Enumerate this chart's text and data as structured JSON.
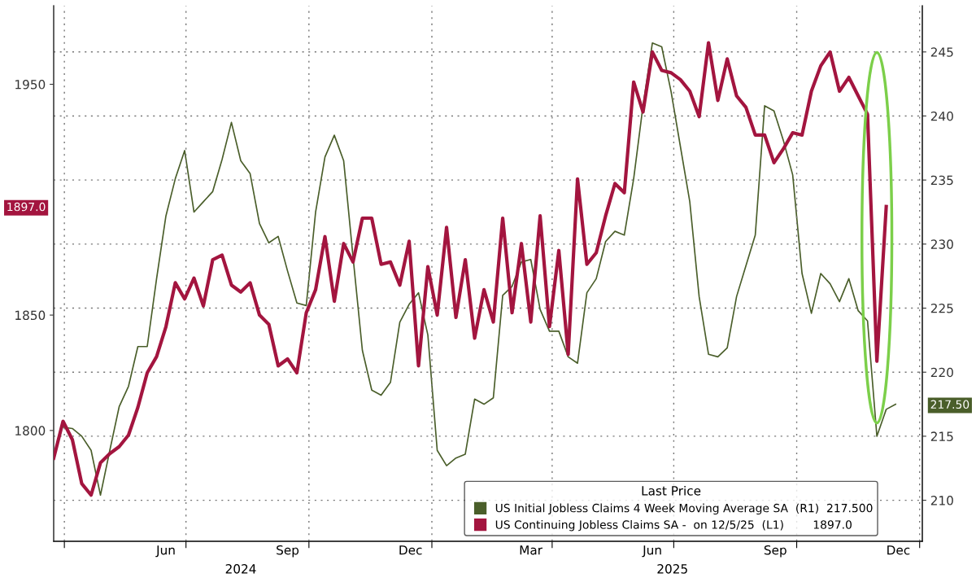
{
  "chart_data": {
    "type": "line",
    "x": [
      "2024-03-24",
      "2024-03-31",
      "2024-04-07",
      "2024-04-14",
      "2024-04-21",
      "2024-04-28",
      "2024-05-05",
      "2024-05-12",
      "2024-05-19",
      "2024-05-26",
      "2024-06-02",
      "2024-06-09",
      "2024-06-16",
      "2024-06-23",
      "2024-06-30",
      "2024-07-07",
      "2024-07-14",
      "2024-07-21",
      "2024-07-28",
      "2024-08-04",
      "2024-08-11",
      "2024-08-18",
      "2024-08-25",
      "2024-09-01",
      "2024-09-08",
      "2024-09-15",
      "2024-09-22",
      "2024-09-29",
      "2024-10-06",
      "2024-10-13",
      "2024-10-20",
      "2024-10-27",
      "2024-11-03",
      "2024-11-10",
      "2024-11-17",
      "2024-11-24",
      "2024-12-01",
      "2024-12-08",
      "2024-12-15",
      "2024-12-22",
      "2024-12-29",
      "2025-01-05",
      "2025-01-12",
      "2025-01-19",
      "2025-01-26",
      "2025-02-02",
      "2025-02-09",
      "2025-02-16",
      "2025-02-23",
      "2025-03-02",
      "2025-03-09",
      "2025-03-16",
      "2025-03-23",
      "2025-03-30",
      "2025-04-06",
      "2025-04-13",
      "2025-04-20",
      "2025-04-27",
      "2025-05-04",
      "2025-05-11",
      "2025-05-18",
      "2025-05-25",
      "2025-06-01",
      "2025-06-08",
      "2025-06-15",
      "2025-06-22",
      "2025-06-29",
      "2025-07-06",
      "2025-07-13",
      "2025-07-20",
      "2025-07-27",
      "2025-08-03",
      "2025-08-10",
      "2025-08-17",
      "2025-08-24",
      "2025-08-31",
      "2025-09-07",
      "2025-09-14",
      "2025-09-21",
      "2025-09-28",
      "2025-10-05",
      "2025-10-12",
      "2025-10-19",
      "2025-10-26",
      "2025-11-02",
      "2025-11-09",
      "2025-11-16",
      "2025-11-23",
      "2025-11-30",
      "2025-12-07"
    ],
    "series": [
      {
        "name": "US Initial Jobless Claims 4 Week Moving Average SA  (R1)  217.500",
        "color": "#4a5e2a",
        "axis": "y2",
        "x": [
          "2024-03-31",
          "2024-04-07",
          "2024-04-14",
          "2024-04-21",
          "2024-04-28",
          "2024-05-05",
          "2024-05-12",
          "2024-05-19",
          "2024-05-26",
          "2024-06-02",
          "2024-06-09",
          "2024-06-16",
          "2024-06-23",
          "2024-06-30",
          "2024-07-07",
          "2024-07-14",
          "2024-07-21",
          "2024-07-28",
          "2024-08-04",
          "2024-08-11",
          "2024-08-18",
          "2024-08-25",
          "2024-09-01",
          "2024-09-08",
          "2024-09-15",
          "2024-09-22",
          "2024-09-29",
          "2024-10-06",
          "2024-10-13",
          "2024-10-20",
          "2024-10-27",
          "2024-11-03",
          "2024-11-10",
          "2024-11-17",
          "2024-11-24",
          "2024-12-01",
          "2024-12-08",
          "2024-12-15",
          "2024-12-22",
          "2024-12-29",
          "2025-01-05",
          "2025-01-12",
          "2025-01-19",
          "2025-01-26",
          "2025-02-02",
          "2025-02-09",
          "2025-02-16",
          "2025-02-23",
          "2025-03-02",
          "2025-03-09",
          "2025-03-16",
          "2025-03-23",
          "2025-03-30",
          "2025-04-06",
          "2025-04-13",
          "2025-04-20",
          "2025-04-27",
          "2025-05-04",
          "2025-05-11",
          "2025-05-18",
          "2025-05-25",
          "2025-06-01",
          "2025-06-08",
          "2025-06-15",
          "2025-06-22",
          "2025-06-29",
          "2025-07-06",
          "2025-07-13",
          "2025-07-20",
          "2025-07-27",
          "2025-08-03",
          "2025-08-10",
          "2025-08-17",
          "2025-08-24",
          "2025-08-31",
          "2025-09-07",
          "2025-09-14",
          "2025-09-21",
          "2025-09-28",
          "2025-10-05",
          "2025-10-12",
          "2025-10-19",
          "2025-10-26",
          "2025-11-02",
          "2025-11-09",
          "2025-11-16",
          "2025-11-23",
          "2025-11-30",
          "2025-12-07",
          "2025-12-14"
        ],
        "values": [
          215.7,
          215.6,
          215.0,
          213.9,
          210.4,
          213.9,
          217.3,
          218.9,
          222.0,
          222.0,
          227.3,
          232.2,
          235.1,
          237.3,
          232.5,
          233.3,
          234.1,
          236.6,
          239.5,
          236.5,
          235.5,
          231.6,
          230.1,
          230.6,
          227.9,
          225.4,
          225.2,
          232.5,
          236.8,
          238.5,
          236.5,
          229.0,
          221.7,
          218.6,
          218.2,
          219.2,
          223.9,
          225.3,
          226.2,
          222.9,
          213.9,
          212.7,
          213.3,
          213.6,
          217.9,
          217.5,
          218.0,
          226.0,
          226.7,
          228.6,
          228.8,
          224.9,
          223.2,
          223.2,
          221.2,
          220.7,
          226.2,
          227.3,
          230.2,
          231.0,
          230.7,
          235.1,
          240.8,
          245.7,
          245.4,
          241.9,
          237.6,
          233.3,
          225.9,
          221.4,
          221.2,
          221.9,
          225.9,
          228.3,
          230.7,
          240.8,
          240.4,
          238.1,
          235.4,
          227.7,
          224.6,
          227.7,
          226.9,
          225.5,
          227.3,
          224.8,
          224.0,
          215.0,
          217.1,
          217.5
        ]
      },
      {
        "name": "US Continuing Jobless Claims SA -  on 12/5/25  (L1)        1897.0",
        "color": "#a3153f",
        "values": [
          1788,
          1804,
          1796,
          1777,
          1772,
          1786,
          1790,
          1793,
          1798,
          1810,
          1825,
          1832,
          1845,
          1864,
          1857,
          1866,
          1854,
          1874,
          1876,
          1863,
          1860,
          1864,
          1850,
          1846,
          1828,
          1831,
          1825,
          1851,
          1861,
          1884,
          1856,
          1881,
          1873,
          1892,
          1892,
          1872,
          1873,
          1863,
          1882,
          1828,
          1871,
          1850,
          1888,
          1849,
          1874,
          1840,
          1861,
          1847,
          1892,
          1851,
          1881,
          1847,
          1893,
          1845,
          1878,
          1833,
          1909,
          1872,
          1877,
          1893,
          1907,
          1903,
          1951,
          1938,
          1964,
          1956,
          1955,
          1952,
          1947,
          1936,
          1968,
          1943,
          1961,
          1945,
          1940,
          1928,
          1928,
          1916,
          1922,
          1929,
          1928,
          1947,
          1958,
          1964,
          1947,
          1953,
          1945,
          1937,
          1830,
          1897
        ]
      }
    ],
    "legend_title": "Last Price",
    "legend": "bottom right",
    "xlim": [
      "2024-03-24",
      "2026-01-03"
    ],
    "xticks": [
      {
        "value": "2024-04-01",
        "label": null
      },
      {
        "value": "2024-06-16",
        "label": "Jun"
      },
      {
        "value": "2024-07-01",
        "label": null
      },
      {
        "value": "2024-09-15",
        "label": "Sep"
      },
      {
        "value": "2024-10-01",
        "label": null
      },
      {
        "value": "2024-12-16",
        "label": "Dec"
      },
      {
        "value": "2025-01-01",
        "label": null
      },
      {
        "value": "2025-03-16",
        "label": "Mar"
      },
      {
        "value": "2025-04-01",
        "label": null
      },
      {
        "value": "2025-06-15",
        "label": "Jun"
      },
      {
        "value": "2025-07-01",
        "label": null
      },
      {
        "value": "2025-09-15",
        "label": "Sep"
      },
      {
        "value": "2025-10-01",
        "label": null
      },
      {
        "value": "2025-12-16",
        "label": "Dec"
      },
      {
        "value": "2026-01-01",
        "label": null
      }
    ],
    "x2lim": [
      "2024-03-24",
      "2026-01-03"
    ],
    "x2ticks": [
      {
        "value": "2024-08-11",
        "label": "2024"
      },
      {
        "value": "2025-06-30",
        "label": "2025"
      }
    ],
    "ylim": [
      1752,
      1984
    ],
    "yticks": [
      1800,
      1850,
      {
        "value": 1897,
        "label": "1897.0"
      },
      1950
    ],
    "y2lim": [
      206.8,
      248.6
    ],
    "y2ticks": [
      210,
      215,
      {
        "value": 217.5,
        "label": "217.50"
      },
      220,
      225,
      230,
      235,
      240,
      245
    ],
    "grid": true,
    "marker": "none",
    "line_style": "solid"
  }
}
